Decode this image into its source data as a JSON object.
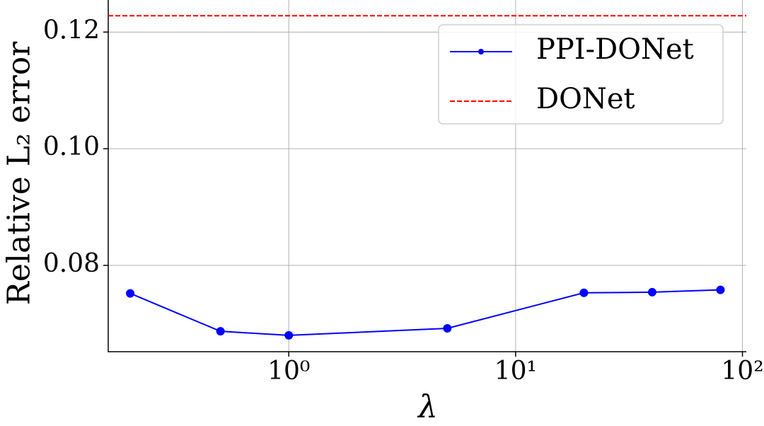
{
  "chart_data": {
    "type": "line",
    "xlabel": "λ",
    "ylabel": "Relative L₂ error",
    "xscale": "log",
    "x": [
      0.2,
      0.5,
      1,
      5,
      20,
      40,
      80
    ],
    "series": [
      {
        "name": "PPI-DONet",
        "color": "#0000ff",
        "values": [
          0.0752,
          0.0687,
          0.068,
          0.0692,
          0.0753,
          0.0754,
          0.0758
        ]
      }
    ],
    "hlines": [
      {
        "name": "DONet",
        "color": "#ff0000",
        "value": 0.1228
      }
    ],
    "xlim": [
      0.16,
      104
    ],
    "ylim": [
      0.0652,
      0.1255
    ],
    "xticks": [
      {
        "value": 1,
        "label": "10⁰"
      },
      {
        "value": 10,
        "label": "10¹"
      },
      {
        "value": 100,
        "label": "10²"
      }
    ],
    "yticks": [
      0.08,
      {
        "value": 0.1,
        "label": "0.10"
      },
      0.12
    ],
    "grid": true,
    "legend": "upper right"
  }
}
